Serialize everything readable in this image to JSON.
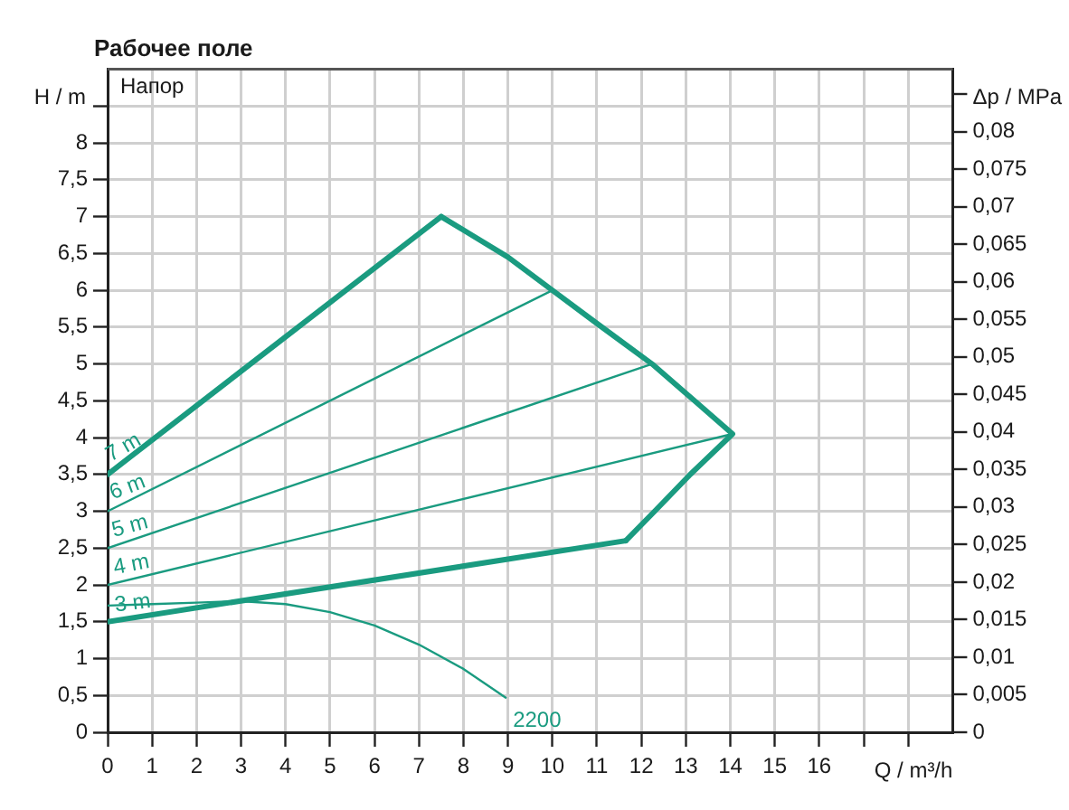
{
  "chart_data": {
    "type": "line",
    "title": "Рабочее поле",
    "xlabel": "Q / m³/h",
    "ylabel": "H / m",
    "y2label": "Δp / MPa",
    "annotations": [
      "Напор"
    ],
    "xlim": [
      0,
      19
    ],
    "xticks": [
      0,
      1,
      2,
      3,
      4,
      5,
      6,
      7,
      8,
      9,
      10,
      11,
      12,
      13,
      14,
      15,
      16,
      {
        "value": 17,
        "label": null
      },
      {
        "value": 18,
        "label": null
      }
    ],
    "ylim": [
      0,
      9
    ],
    "yticks": [
      0,
      {
        "value": 0.5,
        "label": "0,5"
      },
      1,
      {
        "value": 1.5,
        "label": "1,5"
      },
      2,
      {
        "value": 2.5,
        "label": "2,5"
      },
      3,
      {
        "value": 3.5,
        "label": "3,5"
      },
      4,
      {
        "value": 4.5,
        "label": "4,5"
      },
      5,
      {
        "value": 5.5,
        "label": "5,5"
      },
      6,
      {
        "value": 6.5,
        "label": "6,5"
      },
      7,
      {
        "value": 7.5,
        "label": "7,5"
      },
      8,
      {
        "value": 8.5,
        "label": null
      }
    ],
    "y2lim": [
      0,
      0.0883
    ],
    "y2ticks": [
      0,
      {
        "value": 0.005,
        "label": "0,005"
      },
      {
        "value": 0.01,
        "label": "0,01"
      },
      {
        "value": 0.015,
        "label": "0,015"
      },
      {
        "value": 0.02,
        "label": "0,02"
      },
      {
        "value": 0.025,
        "label": "0,025"
      },
      {
        "value": 0.03,
        "label": "0,03"
      },
      {
        "value": 0.035,
        "label": "0,035"
      },
      {
        "value": 0.04,
        "label": "0,04"
      },
      {
        "value": 0.045,
        "label": "0,045"
      },
      {
        "value": 0.05,
        "label": "0,05"
      },
      {
        "value": 0.055,
        "label": "0,055"
      },
      {
        "value": 0.06,
        "label": "0,06"
      },
      {
        "value": 0.065,
        "label": "0,065"
      },
      {
        "value": 0.07,
        "label": "0,07"
      },
      {
        "value": 0.075,
        "label": "0,075"
      },
      {
        "value": 0.08,
        "label": "0,08"
      },
      {
        "value": 0.085,
        "label": null
      }
    ],
    "grid": true,
    "marker": "none",
    "series": [
      {
        "name": "7 m",
        "color": "#1a9b80",
        "x": [
          0,
          7.5
        ],
        "values": [
          3.5,
          7
        ]
      },
      {
        "color": "#1a9b80",
        "x": [
          7.5,
          9,
          10,
          11,
          12.24,
          13.1,
          14.05,
          13.1,
          12.3,
          11.65
        ],
        "values": [
          7,
          6.45,
          6,
          5.55,
          5,
          4.55,
          4.05,
          3.5,
          3,
          2.6
        ]
      },
      {
        "name": "3 m",
        "color": "#1a9b80",
        "x": [
          0,
          11.65
        ],
        "values": [
          1.5,
          2.6
        ]
      },
      {
        "name": "6 m",
        "color": "#1a9b80",
        "x": [
          0,
          10
        ],
        "values": [
          3,
          6
        ]
      },
      {
        "name": "5 m",
        "color": "#1a9b80",
        "x": [
          0,
          12.24
        ],
        "values": [
          2.5,
          5
        ]
      },
      {
        "name": "4 m",
        "color": "#1a9b80",
        "x": [
          0,
          14.05
        ],
        "values": [
          2,
          4.05
        ]
      },
      {
        "name": "2200",
        "color": "#1a9b80",
        "x": [
          0,
          1,
          2,
          3,
          4,
          5,
          6,
          7,
          8,
          8.95
        ],
        "values": [
          1.72,
          1.74,
          1.76,
          1.78,
          1.74,
          1.63,
          1.45,
          1.19,
          0.86,
          0.47
        ]
      }
    ]
  }
}
